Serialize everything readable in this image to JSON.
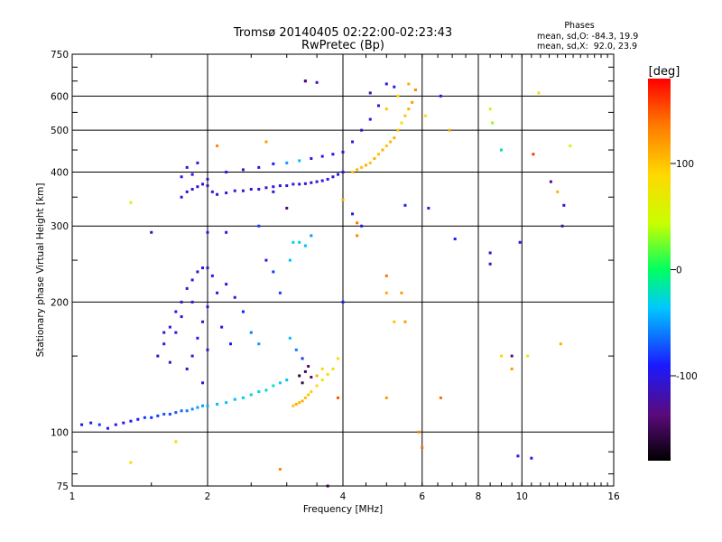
{
  "chart_data": {
    "type": "scatter",
    "title": "Tromsø 20140405 02:22:00-02:23:43",
    "subtitle": "RwPretec (Bp)",
    "xlabel": "Frequency [MHz]",
    "ylabel": "Stationary phase Virtual Height [km]",
    "x_scale": "log2",
    "y_scale": "log",
    "xlim": [
      1,
      16
    ],
    "ylim": [
      75,
      750
    ],
    "x_ticks": [
      1,
      2,
      4,
      6,
      8,
      10,
      16
    ],
    "x_grid_lines": [
      2,
      4,
      6,
      8,
      10
    ],
    "y_ticks": [
      75,
      100,
      200,
      300,
      400,
      500,
      600,
      750
    ],
    "grid": true,
    "legend": {
      "heading": "Phases",
      "lines": [
        "mean, sd,O: -84.3, 19.9",
        "mean, sd,X:  92.0, 23.9"
      ],
      "placement": "top-right"
    },
    "colorbar": {
      "label": "[deg]",
      "range": [
        -180,
        180
      ],
      "ticks": [
        100,
        0,
        -100
      ],
      "colormap": "rainbow"
    },
    "series": [
      {
        "name": "O",
        "points": [
          [
            1.05,
            104,
            -100
          ],
          [
            1.1,
            105,
            -90
          ],
          [
            1.15,
            104,
            -80
          ],
          [
            1.2,
            102,
            -95
          ],
          [
            1.25,
            104,
            -100
          ],
          [
            1.3,
            105,
            -100
          ],
          [
            1.35,
            106,
            -90
          ],
          [
            1.4,
            107,
            -95
          ],
          [
            1.45,
            108,
            -80
          ],
          [
            1.5,
            108,
            -85
          ],
          [
            1.55,
            109,
            -80
          ],
          [
            1.6,
            110,
            -70
          ],
          [
            1.65,
            110,
            -75
          ],
          [
            1.7,
            111,
            -70
          ],
          [
            1.75,
            112,
            -65
          ],
          [
            1.8,
            112,
            -60
          ],
          [
            1.85,
            113,
            -55
          ],
          [
            1.9,
            114,
            -50
          ],
          [
            1.95,
            115,
            -50
          ],
          [
            2.0,
            115,
            -45
          ],
          [
            2.1,
            116,
            -40
          ],
          [
            2.2,
            117,
            -40
          ],
          [
            2.3,
            119,
            -40
          ],
          [
            2.4,
            120,
            -35
          ],
          [
            2.5,
            122,
            -30
          ],
          [
            2.6,
            124,
            -30
          ],
          [
            2.7,
            125,
            -25
          ],
          [
            2.8,
            128,
            -20
          ],
          [
            2.9,
            130,
            -30
          ],
          [
            3.0,
            132,
            -40
          ],
          [
            1.75,
            350,
            -100
          ],
          [
            1.8,
            360,
            -110
          ],
          [
            1.85,
            365,
            -100
          ],
          [
            1.9,
            370,
            -105
          ],
          [
            1.95,
            375,
            -100
          ],
          [
            2.0,
            372,
            -110
          ],
          [
            2.05,
            360,
            -100
          ],
          [
            2.1,
            355,
            -105
          ],
          [
            2.2,
            358,
            -100
          ],
          [
            2.3,
            362,
            -100
          ],
          [
            2.4,
            362,
            -110
          ],
          [
            2.5,
            365,
            -100
          ],
          [
            2.6,
            365,
            -100
          ],
          [
            2.7,
            368,
            -110
          ],
          [
            2.8,
            370,
            -100
          ],
          [
            2.9,
            372,
            -105
          ],
          [
            3.0,
            372,
            -100
          ],
          [
            3.1,
            375,
            -100
          ],
          [
            3.2,
            375,
            -110
          ],
          [
            3.3,
            376,
            -100
          ],
          [
            3.4,
            378,
            -100
          ],
          [
            3.5,
            380,
            -110
          ],
          [
            3.6,
            382,
            -100
          ],
          [
            3.7,
            385,
            -100
          ],
          [
            3.8,
            390,
            -110
          ],
          [
            3.9,
            395,
            -100
          ],
          [
            4.0,
            400,
            -100
          ],
          [
            1.75,
            390,
            -100
          ],
          [
            1.8,
            410,
            -110
          ],
          [
            1.85,
            395,
            -100
          ],
          [
            1.9,
            420,
            -100
          ],
          [
            2.0,
            385,
            -110
          ],
          [
            2.2,
            400,
            -100
          ],
          [
            2.4,
            405,
            -110
          ],
          [
            2.6,
            410,
            -100
          ],
          [
            2.8,
            418,
            -90
          ],
          [
            3.0,
            420,
            -50
          ],
          [
            3.2,
            425,
            -40
          ],
          [
            3.4,
            430,
            -100
          ],
          [
            3.6,
            435,
            -100
          ],
          [
            3.8,
            440,
            -100
          ],
          [
            4.0,
            445,
            -100
          ],
          [
            4.2,
            470,
            -100
          ],
          [
            4.4,
            500,
            -110
          ],
          [
            4.6,
            530,
            -100
          ],
          [
            4.8,
            570,
            -110
          ],
          [
            5.0,
            640,
            -100
          ],
          [
            5.2,
            630,
            -100
          ],
          [
            4.6,
            610,
            -120
          ],
          [
            3.5,
            645,
            -110
          ],
          [
            3.3,
            650,
            -100
          ],
          [
            1.55,
            150,
            -110
          ],
          [
            1.6,
            160,
            -100
          ],
          [
            1.65,
            175,
            -100
          ],
          [
            1.7,
            190,
            -100
          ],
          [
            1.75,
            200,
            -110
          ],
          [
            1.8,
            215,
            -100
          ],
          [
            1.85,
            225,
            -100
          ],
          [
            1.9,
            235,
            -110
          ],
          [
            1.95,
            240,
            -100
          ],
          [
            2.0,
            240,
            -100
          ],
          [
            2.05,
            230,
            -95
          ],
          [
            1.8,
            140,
            -110
          ],
          [
            1.85,
            150,
            -100
          ],
          [
            1.9,
            165,
            -100
          ],
          [
            1.95,
            180,
            -110
          ],
          [
            2.0,
            195,
            -100
          ],
          [
            2.1,
            210,
            -100
          ],
          [
            2.2,
            220,
            -105
          ],
          [
            2.3,
            205,
            -100
          ],
          [
            2.4,
            190,
            -90
          ],
          [
            2.5,
            170,
            -60
          ],
          [
            2.6,
            160,
            -50
          ],
          [
            2.7,
            250,
            -100
          ],
          [
            2.8,
            235,
            -80
          ],
          [
            2.9,
            210,
            -80
          ],
          [
            2.0,
            155,
            -110
          ],
          [
            1.7,
            170,
            -100
          ],
          [
            1.75,
            185,
            -100
          ],
          [
            1.85,
            200,
            -100
          ],
          [
            2.15,
            175,
            -100
          ],
          [
            2.25,
            160,
            -90
          ],
          [
            1.65,
            145,
            -110
          ],
          [
            1.95,
            130,
            -100
          ],
          [
            3.05,
            250,
            -40
          ],
          [
            3.1,
            275,
            -30
          ],
          [
            3.2,
            275,
            -30
          ],
          [
            3.3,
            270,
            -40
          ],
          [
            3.4,
            285,
            -50
          ],
          [
            3.05,
            165,
            -40
          ],
          [
            3.15,
            155,
            -60
          ],
          [
            3.25,
            148,
            -80
          ],
          [
            3.2,
            135,
            -160
          ],
          [
            3.3,
            138,
            -150
          ],
          [
            3.35,
            142,
            -140
          ],
          [
            3.25,
            130,
            -150
          ],
          [
            3.4,
            134,
            -140
          ]
        ]
      },
      {
        "name": "X",
        "points": [
          [
            4.2,
            400,
            100
          ],
          [
            4.3,
            405,
            110
          ],
          [
            4.4,
            410,
            100
          ],
          [
            4.5,
            415,
            110
          ],
          [
            4.6,
            420,
            100
          ],
          [
            4.7,
            430,
            110
          ],
          [
            4.8,
            440,
            100
          ],
          [
            4.9,
            450,
            110
          ],
          [
            5.0,
            460,
            100
          ],
          [
            5.1,
            470,
            105
          ],
          [
            5.2,
            480,
            110
          ],
          [
            5.3,
            500,
            100
          ],
          [
            5.4,
            520,
            90
          ],
          [
            5.5,
            540,
            100
          ],
          [
            5.6,
            560,
            110
          ],
          [
            5.7,
            580,
            120
          ],
          [
            5.8,
            620,
            130
          ],
          [
            5.6,
            640,
            110
          ],
          [
            5.3,
            600,
            90
          ],
          [
            5.0,
            560,
            100
          ],
          [
            3.1,
            115,
            100
          ],
          [
            3.15,
            116,
            110
          ],
          [
            3.2,
            117,
            105
          ],
          [
            3.25,
            118,
            110
          ],
          [
            3.3,
            120,
            100
          ],
          [
            3.35,
            122,
            100
          ],
          [
            3.4,
            124,
            95
          ],
          [
            3.5,
            128,
            90
          ],
          [
            3.6,
            132,
            80
          ],
          [
            3.7,
            136,
            85
          ],
          [
            3.8,
            140,
            80
          ],
          [
            3.9,
            148,
            80
          ],
          [
            3.6,
            140,
            90
          ],
          [
            3.5,
            135,
            110
          ],
          [
            1.35,
            340,
            60
          ],
          [
            1.35,
            85,
            80
          ],
          [
            1.7,
            95,
            90
          ],
          [
            2.1,
            460,
            130
          ],
          [
            2.7,
            470,
            120
          ],
          [
            2.9,
            82,
            130
          ],
          [
            3.9,
            120,
            150
          ],
          [
            4.0,
            345,
            110
          ],
          [
            4.3,
            305,
            140
          ],
          [
            4.3,
            285,
            130
          ],
          [
            5.0,
            230,
            140
          ],
          [
            5.0,
            210,
            110
          ],
          [
            5.0,
            120,
            120
          ],
          [
            5.2,
            180,
            100
          ],
          [
            5.4,
            210,
            120
          ],
          [
            5.5,
            180,
            120
          ],
          [
            5.9,
            100,
            130
          ],
          [
            6.0,
            92,
            140
          ],
          [
            6.1,
            540,
            90
          ],
          [
            6.6,
            120,
            140
          ],
          [
            6.9,
            500,
            110
          ],
          [
            8.5,
            560,
            40
          ],
          [
            8.6,
            520,
            30
          ],
          [
            10.6,
            440,
            160
          ],
          [
            10.9,
            610,
            80
          ],
          [
            12.0,
            360,
            110
          ],
          [
            12.2,
            160,
            110
          ],
          [
            12.8,
            460,
            50
          ],
          [
            9.0,
            150,
            90
          ],
          [
            9.5,
            140,
            120
          ],
          [
            10.3,
            150,
            60
          ]
        ]
      },
      {
        "name": "scatter",
        "points": [
          [
            1.5,
            290,
            -120
          ],
          [
            2.0,
            290,
            -100
          ],
          [
            2.2,
            290,
            -100
          ],
          [
            2.6,
            300,
            -80
          ],
          [
            3.3,
            650,
            -140
          ],
          [
            3.0,
            330,
            -140
          ],
          [
            4.4,
            300,
            -100
          ],
          [
            6.2,
            330,
            -100
          ],
          [
            6.6,
            600,
            -90
          ],
          [
            7.1,
            280,
            -90
          ],
          [
            8.5,
            260,
            -100
          ],
          [
            8.5,
            245,
            -110
          ],
          [
            9.0,
            450,
            -20
          ],
          [
            9.5,
            150,
            -130
          ],
          [
            9.9,
            275,
            -100
          ],
          [
            9.8,
            88,
            -100
          ],
          [
            10.5,
            87,
            -100
          ],
          [
            11.6,
            380,
            -130
          ],
          [
            12.3,
            300,
            -120
          ],
          [
            12.4,
            335,
            -100
          ],
          [
            5.5,
            335,
            -90
          ],
          [
            4.2,
            320,
            -100
          ],
          [
            4.0,
            200,
            -90
          ],
          [
            3.7,
            75,
            -140
          ],
          [
            2.8,
            360,
            -100
          ],
          [
            1.6,
            170,
            -110
          ]
        ]
      }
    ]
  }
}
